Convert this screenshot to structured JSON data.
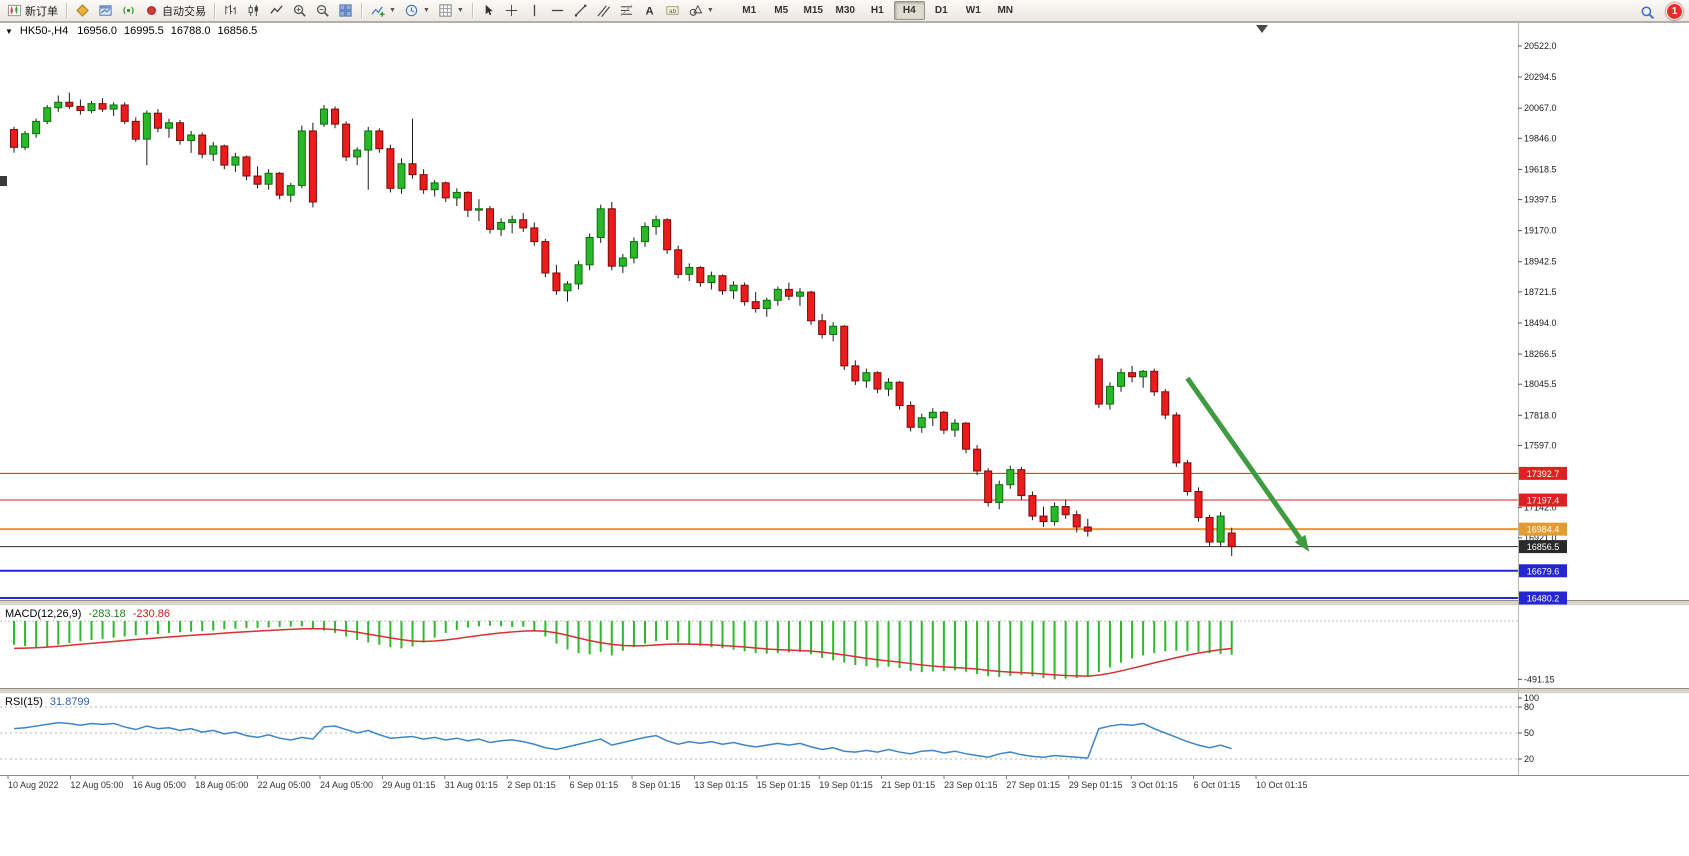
{
  "toolbar": {
    "new_order_label": "新订单",
    "autotrading_label": "自动交易",
    "timeframes": [
      "M1",
      "M5",
      "M15",
      "M30",
      "H1",
      "H4",
      "D1",
      "W1",
      "MN"
    ],
    "active_timeframe": "H4",
    "notification_count": "1",
    "icons": [
      "new-order-icon",
      "metaeditor-icon",
      "strategy-tester-icon",
      "signals-icon",
      "autotrading-icon",
      "bar-chart-icon",
      "candlestick-chart-icon",
      "line-chart-icon",
      "zoom-in-icon",
      "zoom-out-icon",
      "tile-windows-icon",
      "add-indicator-icon",
      "period-clock-icon",
      "template-grid-icon",
      "cursor-icon",
      "crosshair-icon",
      "vertical-line-icon",
      "horizontal-line-icon",
      "trendline-icon",
      "channel-icon",
      "fibonacci-icon",
      "text-icon",
      "label-icon",
      "shapes-icon",
      "search-icon"
    ]
  },
  "chart": {
    "symbol_label": "HK50-,H4",
    "ohlc": {
      "open": "16956.0",
      "high": "16995.5",
      "low": "16788.0",
      "close": "16856.5"
    },
    "price_lines": [
      {
        "price": 17392.7,
        "label": "17392.7",
        "color": "#e02020",
        "width": 1,
        "role": "horizontal-line"
      },
      {
        "price": 17197.4,
        "label": "17197.4",
        "color": "#e02020",
        "width": 1,
        "role": "horizontal-line"
      },
      {
        "price": 16984.4,
        "label": "16984.4",
        "color": "#e39b2d",
        "width": 2,
        "role": "horizontal-line"
      },
      {
        "price": 16856.5,
        "label": "16856.5",
        "color": "#2a2a2a",
        "width": 1,
        "role": "current-price"
      },
      {
        "price": 16679.6,
        "label": "16679.6",
        "color": "#2626d4",
        "width": 2,
        "role": "horizontal-line"
      },
      {
        "price": 16480.2,
        "label": "16480.2",
        "color": "#2626d4",
        "width": 2,
        "role": "horizontal-line"
      }
    ]
  },
  "indicators": {
    "macd": {
      "name": "MACD(12,26,9)",
      "value_main": "-283.18",
      "value_signal": "-230.86",
      "axis_label": "-491.15"
    },
    "rsi": {
      "name": "RSI(15)",
      "value": "31.8799",
      "axis_labels": [
        "100",
        "80",
        "50",
        "20"
      ],
      "levels": [
        80,
        50,
        20
      ]
    }
  },
  "colors": {
    "bull": "#28b828",
    "bull_stroke": "#0b6e0b",
    "bear": "#ec1c1c",
    "bear_stroke": "#7d0909",
    "wick": "#1a1a1a",
    "macd_hist": "#2db82d",
    "macd_signal": "#d83030",
    "rsi_line": "#3d85c8",
    "arrow": "#3f9b3f"
  },
  "chart_data": {
    "type": "candlestick",
    "symbol": "HK50",
    "timeframe": "H4",
    "price_range": {
      "top": 20522.0,
      "bottom": 16480.2
    },
    "price_axis_ticks": [
      "20522.0",
      "20294.5",
      "20067.0",
      "19846.0",
      "19618.5",
      "19397.5",
      "19170.0",
      "18942.5",
      "18721.5",
      "18494.0",
      "18266.5",
      "18045.5",
      "17818.0",
      "17597.0",
      "17142.0",
      "16921.0"
    ],
    "time_labels": [
      "10 Aug 2022",
      "12 Aug 05:00",
      "16 Aug 05:00",
      "18 Aug 05:00",
      "22 Aug 05:00",
      "24 Aug 05:00",
      "29 Aug 01:15",
      "31 Aug 01:15",
      "2 Sep 01:15",
      "6 Sep 01:15",
      "8 Sep 01:15",
      "13 Sep 01:15",
      "15 Sep 01:15",
      "19 Sep 01:15",
      "21 Sep 01:15",
      "23 Sep 01:15",
      "27 Sep 01:15",
      "29 Sep 01:15",
      "3 Oct 01:15",
      "6 Oct 01:15",
      "10 Oct 01:15"
    ],
    "candles": [
      [
        19910,
        19930,
        19740,
        19780
      ],
      [
        19780,
        19900,
        19760,
        19880
      ],
      [
        19880,
        19990,
        19850,
        19970
      ],
      [
        19970,
        20090,
        19950,
        20070
      ],
      [
        20070,
        20160,
        20040,
        20110
      ],
      [
        20110,
        20180,
        20060,
        20080
      ],
      [
        20080,
        20130,
        20020,
        20050
      ],
      [
        20050,
        20120,
        20030,
        20100
      ],
      [
        20100,
        20140,
        20040,
        20060
      ],
      [
        20060,
        20110,
        20010,
        20090
      ],
      [
        20090,
        20110,
        19950,
        19970
      ],
      [
        19970,
        20000,
        19820,
        19840
      ],
      [
        19840,
        20050,
        19650,
        20030
      ],
      [
        20030,
        20060,
        19890,
        19920
      ],
      [
        19920,
        19990,
        19850,
        19960
      ],
      [
        19960,
        19980,
        19800,
        19830
      ],
      [
        19830,
        19900,
        19740,
        19870
      ],
      [
        19870,
        19890,
        19700,
        19730
      ],
      [
        19730,
        19820,
        19680,
        19790
      ],
      [
        19790,
        19800,
        19620,
        19650
      ],
      [
        19650,
        19740,
        19600,
        19710
      ],
      [
        19710,
        19720,
        19540,
        19570
      ],
      [
        19570,
        19640,
        19480,
        19510
      ],
      [
        19510,
        19620,
        19470,
        19590
      ],
      [
        19590,
        19600,
        19400,
        19430
      ],
      [
        19430,
        19520,
        19380,
        19500
      ],
      [
        19500,
        19940,
        19480,
        19900
      ],
      [
        19900,
        19960,
        19340,
        19380
      ],
      [
        19950,
        20090,
        19930,
        20060
      ],
      [
        20060,
        20080,
        19920,
        19950
      ],
      [
        19950,
        19970,
        19680,
        19710
      ],
      [
        19710,
        19780,
        19650,
        19760
      ],
      [
        19760,
        19930,
        19470,
        19900
      ],
      [
        19900,
        19920,
        19740,
        19770
      ],
      [
        19770,
        19800,
        19450,
        19480
      ],
      [
        19480,
        19700,
        19440,
        19660
      ],
      [
        19660,
        19990,
        19550,
        19580
      ],
      [
        19580,
        19620,
        19440,
        19470
      ],
      [
        19470,
        19540,
        19420,
        19520
      ],
      [
        19520,
        19530,
        19380,
        19410
      ],
      [
        19410,
        19480,
        19350,
        19450
      ],
      [
        19450,
        19460,
        19270,
        19320
      ],
      [
        19320,
        19400,
        19240,
        19330
      ],
      [
        19330,
        19350,
        19150,
        19180
      ],
      [
        19180,
        19260,
        19130,
        19230
      ],
      [
        19230,
        19280,
        19150,
        19250
      ],
      [
        19250,
        19300,
        19160,
        19190
      ],
      [
        19190,
        19230,
        19060,
        19090
      ],
      [
        19090,
        19110,
        18830,
        18860
      ],
      [
        18860,
        18920,
        18700,
        18730
      ],
      [
        18730,
        18800,
        18650,
        18780
      ],
      [
        18780,
        18950,
        18740,
        18920
      ],
      [
        18920,
        19150,
        18880,
        19120
      ],
      [
        19120,
        19360,
        19080,
        19330
      ],
      [
        19330,
        19380,
        18880,
        18910
      ],
      [
        18910,
        19000,
        18860,
        18970
      ],
      [
        18970,
        19120,
        18930,
        19090
      ],
      [
        19090,
        19230,
        19050,
        19200
      ],
      [
        19200,
        19280,
        19140,
        19250
      ],
      [
        19250,
        19260,
        19000,
        19030
      ],
      [
        19030,
        19060,
        18820,
        18850
      ],
      [
        18850,
        18930,
        18800,
        18900
      ],
      [
        18900,
        18910,
        18760,
        18790
      ],
      [
        18790,
        18870,
        18740,
        18840
      ],
      [
        18840,
        18850,
        18700,
        18730
      ],
      [
        18730,
        18800,
        18670,
        18770
      ],
      [
        18770,
        18790,
        18620,
        18650
      ],
      [
        18650,
        18720,
        18570,
        18600
      ],
      [
        18600,
        18680,
        18540,
        18660
      ],
      [
        18660,
        18760,
        18620,
        18740
      ],
      [
        18740,
        18790,
        18660,
        18690
      ],
      [
        18690,
        18750,
        18620,
        18720
      ],
      [
        18720,
        18730,
        18480,
        18510
      ],
      [
        18510,
        18560,
        18380,
        18410
      ],
      [
        18410,
        18500,
        18360,
        18470
      ],
      [
        18470,
        18480,
        18150,
        18180
      ],
      [
        18180,
        18220,
        18040,
        18070
      ],
      [
        18070,
        18160,
        18020,
        18130
      ],
      [
        18130,
        18140,
        17980,
        18010
      ],
      [
        18010,
        18090,
        17960,
        18060
      ],
      [
        18060,
        18070,
        17860,
        17890
      ],
      [
        17890,
        17920,
        17700,
        17730
      ],
      [
        17730,
        17830,
        17690,
        17800
      ],
      [
        17800,
        17870,
        17740,
        17840
      ],
      [
        17840,
        17850,
        17680,
        17710
      ],
      [
        17710,
        17790,
        17660,
        17760
      ],
      [
        17760,
        17770,
        17540,
        17570
      ],
      [
        17570,
        17600,
        17380,
        17410
      ],
      [
        17410,
        17430,
        17150,
        17180
      ],
      [
        17180,
        17340,
        17130,
        17310
      ],
      [
        17310,
        17450,
        17280,
        17420
      ],
      [
        17420,
        17440,
        17200,
        17230
      ],
      [
        17230,
        17260,
        17050,
        17080
      ],
      [
        17080,
        17150,
        17000,
        17040
      ],
      [
        17040,
        17180,
        17010,
        17150
      ],
      [
        17150,
        17200,
        17060,
        17090
      ],
      [
        17090,
        17120,
        16960,
        17000
      ],
      [
        17000,
        17060,
        16930,
        16970
      ],
      [
        18230,
        18260,
        17870,
        17900
      ],
      [
        17900,
        18060,
        17860,
        18030
      ],
      [
        18030,
        18160,
        17990,
        18130
      ],
      [
        18130,
        18180,
        18060,
        18100
      ],
      [
        18100,
        18150,
        18020,
        18140
      ],
      [
        18140,
        18160,
        17960,
        17990
      ],
      [
        17990,
        18010,
        17790,
        17820
      ],
      [
        17820,
        17840,
        17440,
        17470
      ],
      [
        17470,
        17490,
        17230,
        17260
      ],
      [
        17260,
        17290,
        17040,
        17070
      ],
      [
        17070,
        17090,
        16860,
        16890
      ],
      [
        16890,
        17110,
        16860,
        17080
      ],
      [
        16956,
        16995.5,
        16788,
        16856.5
      ]
    ],
    "macd": {
      "histogram": [
        -200,
        -210,
        -220,
        -215,
        -200,
        -185,
        -170,
        -160,
        -150,
        -140,
        -130,
        -120,
        -115,
        -110,
        -100,
        -95,
        -90,
        -85,
        -80,
        -70,
        -65,
        -60,
        -58,
        -55,
        -50,
        -48,
        -45,
        -60,
        -80,
        -100,
        -130,
        -160,
        -180,
        -200,
        -220,
        -230,
        -215,
        -180,
        -140,
        -100,
        -75,
        -55,
        -45,
        -40,
        -45,
        -50,
        -48,
        -80,
        -130,
        -190,
        -240,
        -270,
        -280,
        -260,
        -290,
        -250,
        -220,
        -190,
        -170,
        -160,
        -180,
        -200,
        -210,
        -220,
        -230,
        -240,
        -255,
        -270,
        -275,
        -270,
        -265,
        -260,
        -280,
        -310,
        -330,
        -350,
        -370,
        -380,
        -390,
        -385,
        -395,
        -420,
        -430,
        -425,
        -420,
        -415,
        -425,
        -445,
        -465,
        -470,
        -460,
        -455,
        -465,
        -480,
        -491.15,
        -485,
        -480,
        -470,
        -430,
        -390,
        -350,
        -315,
        -290,
        -270,
        -255,
        -250,
        -255,
        -260,
        -270,
        -278,
        -283.18
      ],
      "signal": [
        -230,
        -228,
        -225,
        -220,
        -213,
        -205,
        -196,
        -188,
        -180,
        -172,
        -164,
        -156,
        -149,
        -142,
        -135,
        -128,
        -121,
        -115,
        -109,
        -102,
        -96,
        -90,
        -85,
        -80,
        -75,
        -70,
        -66,
        -64,
        -66,
        -72,
        -82,
        -95,
        -110,
        -126,
        -142,
        -157,
        -168,
        -172,
        -168,
        -160,
        -148,
        -135,
        -122,
        -110,
        -100,
        -92,
        -85,
        -82,
        -86,
        -100,
        -120,
        -143,
        -165,
        -182,
        -197,
        -206,
        -209,
        -207,
        -202,
        -196,
        -193,
        -194,
        -197,
        -201,
        -206,
        -212,
        -219,
        -227,
        -235,
        -241,
        -245,
        -248,
        -253,
        -262,
        -273,
        -286,
        -300,
        -313,
        -326,
        -336,
        -346,
        -358,
        -370,
        -379,
        -386,
        -391,
        -397,
        -405,
        -415,
        -424,
        -430,
        -434,
        -439,
        -446,
        -453,
        -458,
        -462,
        -464,
        -455,
        -440,
        -420,
        -398,
        -375,
        -352,
        -330,
        -308,
        -288,
        -270,
        -254,
        -241,
        -230.86
      ]
    },
    "rsi_series": [
      55,
      56,
      58,
      60,
      62,
      61,
      59,
      61,
      60,
      61,
      57,
      54,
      58,
      55,
      56,
      53,
      55,
      51,
      53,
      49,
      51,
      47,
      45,
      48,
      44,
      42,
      45,
      43,
      57,
      58,
      54,
      50,
      53,
      48,
      44,
      45,
      46,
      43,
      45,
      42,
      44,
      41,
      43,
      39,
      41,
      42,
      40,
      37,
      33,
      31,
      34,
      37,
      40,
      43,
      36,
      39,
      42,
      45,
      47,
      41,
      37,
      40,
      38,
      40,
      37,
      39,
      36,
      34,
      36,
      38,
      36,
      38,
      34,
      31,
      33,
      29,
      28,
      30,
      28,
      31,
      28,
      26,
      29,
      30,
      27,
      29,
      26,
      24,
      22,
      26,
      28,
      25,
      23,
      22,
      24,
      23,
      22,
      21,
      55,
      58,
      60,
      59,
      61,
      55,
      50,
      45,
      40,
      36,
      33,
      36,
      31.88
    ],
    "annotations": [
      {
        "type": "arrow",
        "from": {
          "bar": 107,
          "price": 18090
        },
        "to": {
          "bar": 118,
          "price": 16820
        },
        "color": "#3f9b3f"
      }
    ]
  }
}
